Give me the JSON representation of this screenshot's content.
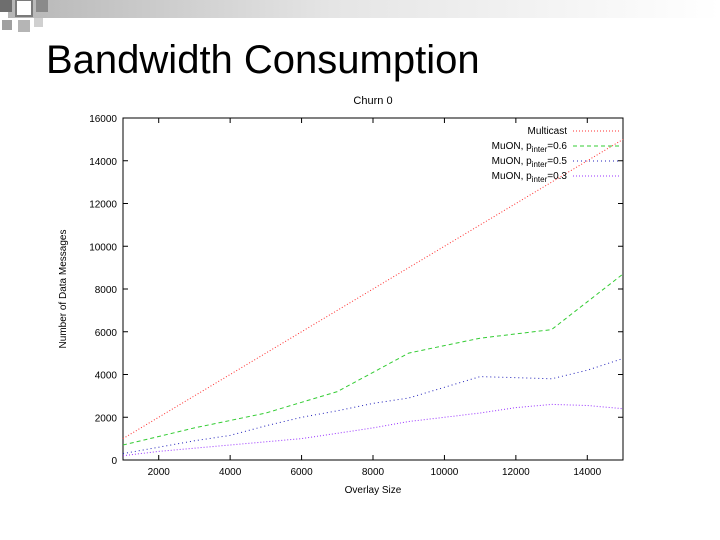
{
  "slide": {
    "title": "Bandwidth Consumption"
  },
  "chart_data": {
    "type": "line",
    "title": "Churn 0",
    "xlabel": "Overlay Size",
    "ylabel": "Number of Data Messages",
    "xlim": [
      1000,
      15000
    ],
    "ylim": [
      0,
      16000
    ],
    "xticks": [
      2000,
      4000,
      6000,
      8000,
      10000,
      12000,
      14000
    ],
    "yticks": [
      0,
      2000,
      4000,
      6000,
      8000,
      10000,
      12000,
      14000,
      16000
    ],
    "grid": false,
    "legend_position": "top-right",
    "series": [
      {
        "name": "Multicast",
        "color": "#ff3030",
        "dash": "1,2",
        "points": [
          [
            1000,
            1000
          ],
          [
            15000,
            15000
          ]
        ]
      },
      {
        "name": "MuON, p_inter=0.6",
        "legend_main": "MuON, p",
        "legend_sub": "inter",
        "legend_tail": "=0.6",
        "color": "#33cc33",
        "dash": "4,3",
        "points": [
          [
            1000,
            700
          ],
          [
            2000,
            1100
          ],
          [
            3000,
            1500
          ],
          [
            4000,
            1850
          ],
          [
            5000,
            2200
          ],
          [
            6000,
            2700
          ],
          [
            7000,
            3200
          ],
          [
            8000,
            4100
          ],
          [
            9000,
            5000
          ],
          [
            10000,
            5350
          ],
          [
            11000,
            5700
          ],
          [
            12000,
            5900
          ],
          [
            13000,
            6100
          ],
          [
            14000,
            7400
          ],
          [
            15000,
            8700
          ]
        ]
      },
      {
        "name": "MuON, p_inter=0.5",
        "legend_main": "MuON, p",
        "legend_sub": "inter",
        "legend_tail": "=0.5",
        "color": "#2222bb",
        "dash": "1,3",
        "points": [
          [
            1000,
            300
          ],
          [
            2000,
            600
          ],
          [
            3000,
            900
          ],
          [
            4000,
            1150
          ],
          [
            5000,
            1600
          ],
          [
            6000,
            2000
          ],
          [
            7000,
            2300
          ],
          [
            8000,
            2650
          ],
          [
            9000,
            2900
          ],
          [
            10000,
            3400
          ],
          [
            11000,
            3900
          ],
          [
            12000,
            3850
          ],
          [
            13000,
            3800
          ],
          [
            14000,
            4200
          ],
          [
            15000,
            4750
          ]
        ]
      },
      {
        "name": "MuON, p_inter=0.3",
        "legend_main": "MuON, p",
        "legend_sub": "inter",
        "legend_tail": "=0.3",
        "color": "#9933ff",
        "dash": "1,2",
        "points": [
          [
            1000,
            200
          ],
          [
            2000,
            400
          ],
          [
            3000,
            550
          ],
          [
            4000,
            700
          ],
          [
            5000,
            850
          ],
          [
            6000,
            1000
          ],
          [
            7000,
            1250
          ],
          [
            8000,
            1500
          ],
          [
            9000,
            1800
          ],
          [
            10000,
            2000
          ],
          [
            11000,
            2200
          ],
          [
            12000,
            2450
          ],
          [
            13000,
            2600
          ],
          [
            14000,
            2550
          ],
          [
            15000,
            2400
          ]
        ]
      }
    ]
  }
}
